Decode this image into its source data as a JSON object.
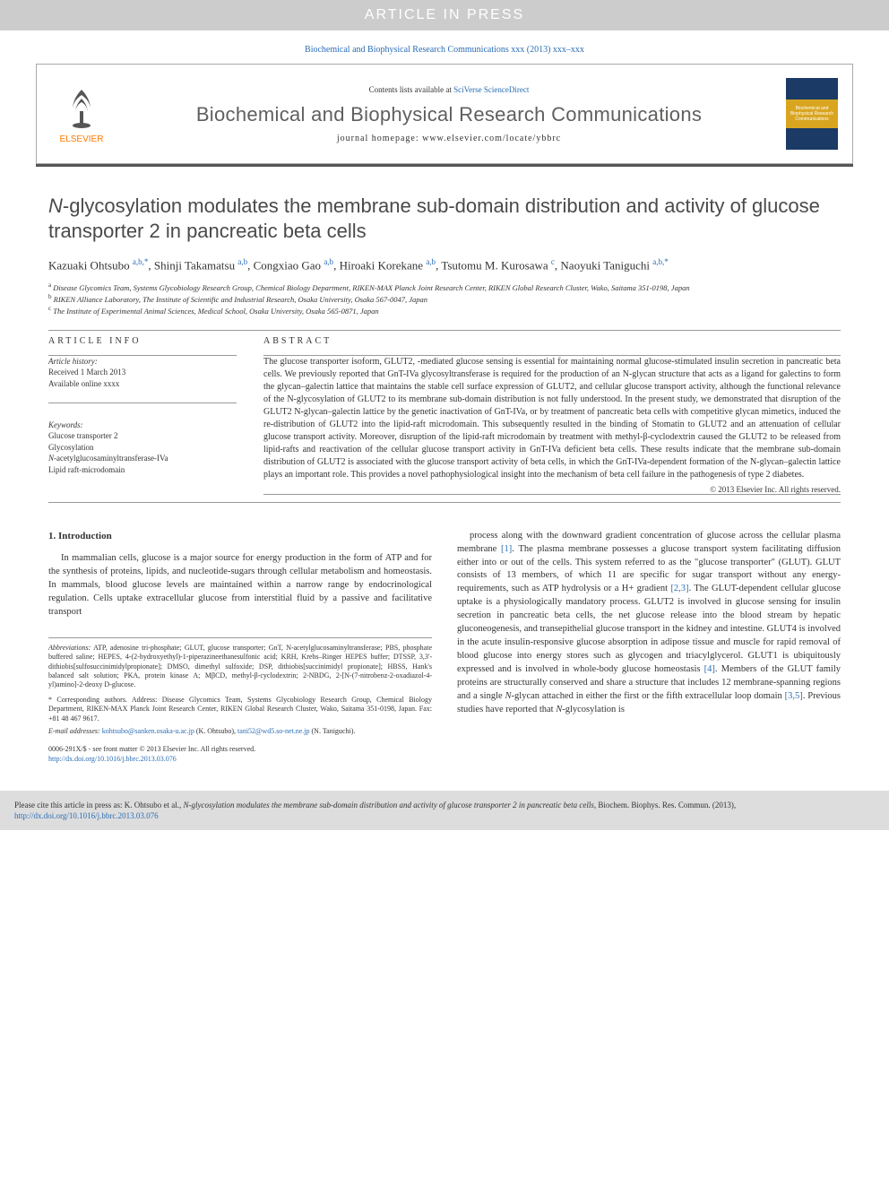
{
  "banner": "ARTICLE IN PRESS",
  "topcite": {
    "text": "Biochemical and Biophysical Research Communications xxx (2013) xxx–xxx"
  },
  "header": {
    "publisher": "ELSEVIER",
    "contents_prefix": "Contents lists available at ",
    "contents_link": "SciVerse ScienceDirect",
    "journal": "Biochemical and Biophysical Research Communications",
    "homepage_prefix": "journal homepage: ",
    "homepage": "www.elsevier.com/locate/ybbrc",
    "cover_text": "Biochemical and Biophysical Research Communications"
  },
  "article": {
    "title_html": "<i>N</i>-glycosylation modulates the membrane sub-domain distribution and activity of glucose transporter 2 in pancreatic beta cells",
    "authors_html": "Kazuaki Ohtsubo <sup>a,b,*</sup>, Shinji Takamatsu <sup>a,b</sup>, Congxiao Gao <sup>a,b</sup>, Hiroaki Korekane <sup>a,b</sup>, Tsutomu M. Kurosawa <sup>c</sup>, Naoyuki Taniguchi <sup>a,b,*</sup>",
    "affiliations": [
      "a Disease Glycomics Team, Systems Glycobiology Research Group, Chemical Biology Department, RIKEN-MAX Planck Joint Research Center, RIKEN Global Research Cluster, Wako, Saitama 351-0198, Japan",
      "b RIKEN Alliance Laboratory, The Institute of Scientific and Industrial Research, Osaka University, Osaka 567-0047, Japan",
      "c The Institute of Experimental Animal Sciences, Medical School, Osaka University, Osaka 565-0871, Japan"
    ]
  },
  "meta": {
    "info_heading": "ARTICLE INFO",
    "abstract_heading": "ABSTRACT",
    "history_label": "Article history:",
    "history_received": "Received 1 March 2013",
    "history_online": "Available online xxxx",
    "keywords_label": "Keywords:",
    "keywords": [
      "Glucose transporter 2",
      "Glycosylation",
      "N-acetylglucosaminyltransferase-IVa",
      "Lipid raft-microdomain"
    ],
    "abstract": "The glucose transporter isoform, GLUT2, -mediated glucose sensing is essential for maintaining normal glucose-stimulated insulin secretion in pancreatic beta cells. We previously reported that GnT-IVa glycosyltransferase is required for the production of an N-glycan structure that acts as a ligand for galectins to form the glycan–galectin lattice that maintains the stable cell surface expression of GLUT2, and cellular glucose transport activity, although the functional relevance of the N-glycosylation of GLUT2 to its membrane sub-domain distribution is not fully understood. In the present study, we demonstrated that disruption of the GLUT2 N-glycan–galectin lattice by the genetic inactivation of GnT-IVa, or by treatment of pancreatic beta cells with competitive glycan mimetics, induced the re-distribution of GLUT2 into the lipid-raft microdomain. This subsequently resulted in the binding of Stomatin to GLUT2 and an attenuation of cellular glucose transport activity. Moreover, disruption of the lipid-raft microdomain by treatment with methyl-β-cyclodextrin caused the GLUT2 to be released from lipid-rafts and reactivation of the cellular glucose transport activity in GnT-IVa deficient beta cells. These results indicate that the membrane sub-domain distribution of GLUT2 is associated with the glucose transport activity of beta cells, in which the GnT-IVa-dependent formation of the N-glycan–galectin lattice plays an important role. This provides a novel pathophysiological insight into the mechanism of beta cell failure in the pathogenesis of type 2 diabetes.",
    "copyright": "© 2013 Elsevier Inc. All rights reserved."
  },
  "intro": {
    "heading": "1. Introduction",
    "left_para": "In mammalian cells, glucose is a major source for energy production in the form of ATP and for the synthesis of proteins, lipids, and nucleotide-sugars through cellular metabolism and homeostasis. In mammals, blood glucose levels are maintained within a narrow range by endocrinological regulation. Cells uptake extracellular glucose from interstitial fluid by a passive and facilitative transport",
    "right_para_html": "process along with the downward gradient concentration of glucose across the cellular plasma membrane <a class=\"reflink\">[1]</a>. The plasma membrane possesses a glucose transport system facilitating diffusion either into or out of the cells. This system referred to as the \"glucose transporter\" (GLUT). GLUT consists of 13 members, of which 11 are specific for sugar transport without any energy-requirements, such as ATP hydrolysis or a H+ gradient <a class=\"reflink\">[2,3]</a>. The GLUT-dependent cellular glucose uptake is a physiologically mandatory process. GLUT2 is involved in glucose sensing for insulin secretion in pancreatic beta cells, the net glucose release into the blood stream by hepatic gluconeogenesis, and transepithelial glucose transport in the kidney and intestine. GLUT4 is involved in the acute insulin-responsive glucose absorption in adipose tissue and muscle for rapid removal of blood glucose into energy stores such as glycogen and triacylglycerol. GLUT1 is ubiquitously expressed and is involved in whole-body glucose homeostasis <a class=\"reflink\">[4]</a>. Members of the GLUT family proteins are structurally conserved and share a structure that includes 12 membrane-spanning regions and a single <i>N</i>-glycan attached in either the first or the fifth extracellular loop domain <a class=\"reflink\">[3,5]</a>. Previous studies have reported that <i>N</i>-glycosylation is"
  },
  "footnotes": {
    "abbrev_label": "Abbreviations:",
    "abbrev_text": " ATP, adenosine tri-phosphate; GLUT, glucose transporter; GnT, N-acetylglucosaminyltransferase; PBS, phosphate buffered saline; HEPES, 4-(2-hydroxyethyl)-1-piperazineethanesulfonic acid; KRH, Krebs–Ringer HEPES buffer; DTSSP, 3,3'-dithiobis[sulfosuccinimidylpropionate]; DMSO, dimethyl sulfoxide; DSP, dithiobis[succinimidyl propionate]; HBSS, Hank's balanced salt solution; PKA, protein kinase A; MβCD, methyl-β-cyclodextrin; 2-NBDG, 2-[N-(7-nitrobenz-2-oxadiazol-4-yl)amino]-2-deoxy D-glucose.",
    "corr_label": "* Corresponding authors. Address:",
    "corr_text": " Disease Glycomics Team, Systems Glycobiology Research Group, Chemical Biology Department, RIKEN-MAX Planck Joint Research Center, RIKEN Global Research Cluster, Wako, Saitama 351-0198, Japan. Fax: +81 48 467 9617.",
    "emails_label": "E-mail addresses:",
    "email1": "kohtsubo@sanken.osaka-u.ac.jp",
    "email1_attr": " (K. Ohtsubo), ",
    "email2": "tani52@wd5.so-net.ne.jp",
    "email2_attr": " (N. Taniguchi)."
  },
  "footer": {
    "issn": "0006-291X/$ - see front matter © 2013 Elsevier Inc. All rights reserved.",
    "doi": "http://dx.doi.org/10.1016/j.bbrc.2013.03.076"
  },
  "citation_box": {
    "prefix": "Please cite this article in press as: K. Ohtsubo et al., ",
    "title": "N-glycosylation modulates the membrane sub-domain distribution and activity of glucose transporter 2 in pancreatic beta cells",
    "suffix": ", Biochem. Biophys. Res. Commun. (2013), ",
    "doi": "http://dx.doi.org/10.1016/j.bbrc.2013.03.076"
  },
  "colors": {
    "banner_bg": "#cccccc",
    "link": "#2a6db5",
    "publisher": "#ff7a00",
    "journal_title": "#605f5e",
    "rule": "#555555",
    "citation_bg": "#dddddd"
  }
}
